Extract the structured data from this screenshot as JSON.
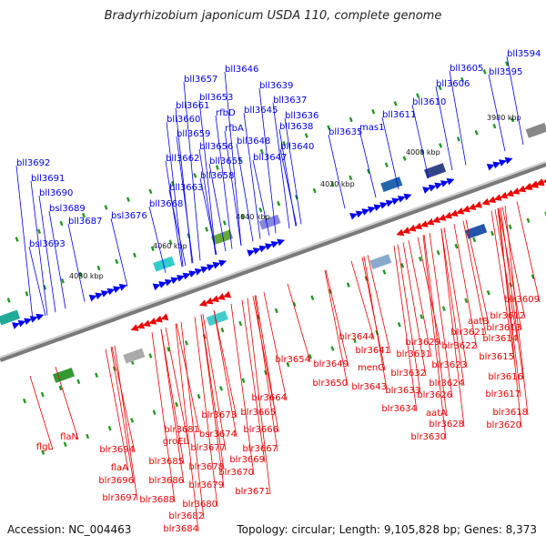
{
  "title": "Bradyrhizobium japonicum USDA 110, complete genome",
  "footer": {
    "accession": "Accession: NC_004463",
    "topology": "Topology: circular; Length: 9,105,828 bp; Genes: 8,373"
  },
  "colors": {
    "forward_strand": "#0000ee",
    "reverse_strand": "#ee0000",
    "backbone": "#888888",
    "ticks": "#229922"
  },
  "scale_labels": [
    "3980 kbp",
    "4000 kbp",
    "4020 kbp",
    "4040 kbp",
    "4060 kbp",
    "4080 kbp"
  ],
  "labels_top": [
    "bll3594",
    "bll3595",
    "bll3605",
    "bll3606",
    "bll3610",
    "bll3611",
    "mas1",
    "bll3635",
    "bll3636",
    "bll3637",
    "bll3638",
    "bll3639",
    "bll3640",
    "bll3645",
    "bll3646",
    "bll3647",
    "bll3648",
    "bll3653",
    "rfbD",
    "rfbA",
    "bll3655",
    "bll3656",
    "bll3657",
    "bll3658",
    "bll3659",
    "bll3660",
    "bll3661",
    "bll3662",
    "bll3663",
    "bll3668",
    "bsl3676",
    "bll3687",
    "bsl3689",
    "bll3690",
    "bll3691",
    "bll3692",
    "bsl3693"
  ],
  "labels_bottom": [
    "blr3609",
    "blr3612",
    "blr3613",
    "aatB",
    "blr3614",
    "blr3615",
    "blr3616",
    "blr3617",
    "blr3618",
    "blr3620",
    "blr3621",
    "blr3622",
    "blr3623",
    "blr3624",
    "blr3626",
    "aatA",
    "blr3628",
    "blr3630",
    "blr3629",
    "blr3631",
    "blr3632",
    "blr3633",
    "blr3634",
    "blr3641",
    "blr3644",
    "menG",
    "blr3643",
    "blr3649",
    "blr3650",
    "blr3654",
    "blr3664",
    "blr3665",
    "blr3666",
    "blr3667",
    "blr3669",
    "blr3670",
    "blr3671",
    "blr3673",
    "bsr3674",
    "blr3677",
    "blr3678",
    "blr3679",
    "blr3680",
    "blr3681",
    "groEL",
    "blr3682",
    "blr3684",
    "blr3685",
    "blr3686",
    "blr3688",
    "blr3694",
    "flaA",
    "blr3696",
    "blr3697",
    "flgL",
    "flaN"
  ]
}
